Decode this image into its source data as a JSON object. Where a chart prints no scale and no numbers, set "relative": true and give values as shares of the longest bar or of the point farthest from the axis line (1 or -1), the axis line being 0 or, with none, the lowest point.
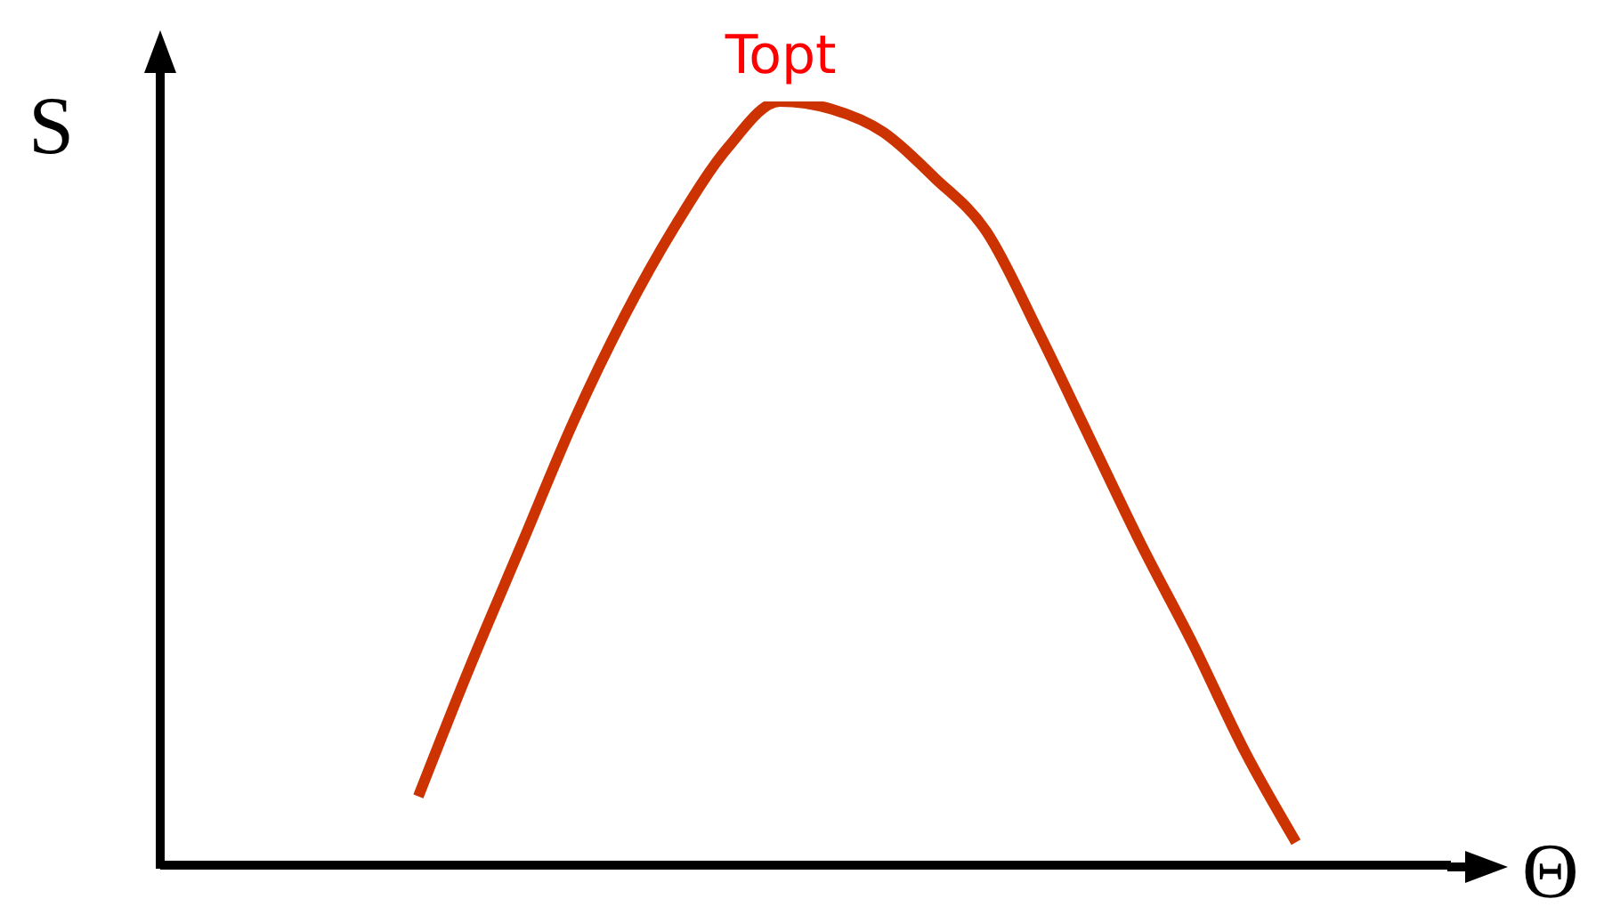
{
  "chart_data": {
    "type": "line",
    "relative": true,
    "xlabel": "Θ",
    "ylabel": "S",
    "annotations": [
      "Topt"
    ],
    "categories": [
      null,
      null,
      null,
      null,
      null,
      null,
      null,
      null,
      null,
      null,
      null,
      null,
      null,
      null,
      null,
      null,
      null,
      null,
      null,
      null,
      null,
      null,
      null,
      null,
      null,
      null
    ],
    "series": [
      {
        "color": "#cc3300",
        "values": [
          null,
          null,
          null,
          null,
          null,
          0.09,
          0.26,
          0.42,
          0.58,
          0.72,
          0.84,
          0.94,
          1,
          0.99,
          0.96,
          0.9,
          0.83,
          0.7,
          0.56,
          0.42,
          0.29,
          0.15,
          0.03,
          null,
          null,
          null
        ]
      }
    ]
  }
}
